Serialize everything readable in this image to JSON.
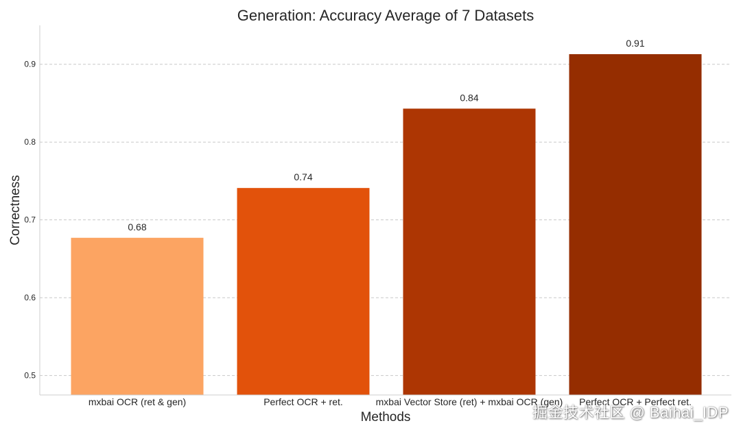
{
  "chart_data": {
    "type": "bar",
    "title": "Generation: Accuracy Average of 7 Datasets",
    "xlabel": "Methods",
    "ylabel": "Correctness",
    "categories": [
      "mxbai OCR (ret & gen)",
      "Perfect OCR + ret.",
      "mxbai Vector Store (ret) + mxbai OCR (gen)",
      "Perfect OCR + Perfect ret."
    ],
    "values": [
      0.677,
      0.741,
      0.843,
      0.913
    ],
    "value_labels": [
      "0.68",
      "0.74",
      "0.84",
      "0.91"
    ],
    "colors": [
      "#fca462",
      "#e2520b",
      "#ad3603",
      "#952d00"
    ],
    "ylim": [
      0.475,
      0.95
    ],
    "yticks": [
      0.5,
      0.6,
      0.7,
      0.8,
      0.9
    ],
    "ytick_labels": [
      "0.5",
      "0.6",
      "0.7",
      "0.8",
      "0.9"
    ],
    "grid": "y dashed",
    "legend": "none"
  },
  "watermark": "掘金技术社区 @ Baihai_IDP"
}
